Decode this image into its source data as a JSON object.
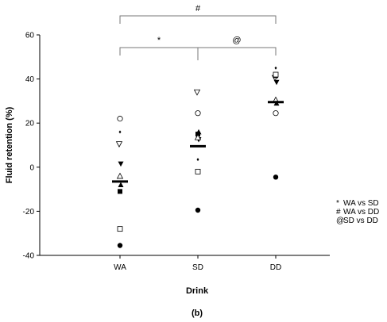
{
  "chart_data": {
    "type": "scatter",
    "xlabel": "Drink",
    "ylabel": "Fluid retention (%)",
    "panel_label": "(b)",
    "categories": [
      "WA",
      "SD",
      "DD"
    ],
    "ylim": [
      -40,
      60
    ],
    "yticks": [
      -40,
      -20,
      0,
      20,
      40,
      60
    ],
    "grid": false,
    "means": [
      -6.5,
      9.5,
      29.5
    ],
    "subjects": [
      {
        "marker": "filled-circle",
        "values": [
          -35.5,
          -19.5,
          -4.5
        ]
      },
      {
        "marker": "open-circle",
        "values": [
          22,
          24.5,
          24.5
        ]
      },
      {
        "marker": "filled-down-triangle",
        "values": [
          1.5,
          12.5,
          38.5
        ]
      },
      {
        "marker": "open-down-triangle",
        "values": [
          10.5,
          34,
          40.5
        ]
      },
      {
        "marker": "filled-square",
        "values": [
          -11,
          15,
          41.5
        ]
      },
      {
        "marker": "open-square",
        "values": [
          -28,
          -2,
          42
        ]
      },
      {
        "marker": "filled-diamond",
        "values": [
          16,
          3.5,
          45
        ]
      },
      {
        "marker": "open-up-triangle",
        "values": [
          -4,
          13.5,
          30.5
        ]
      },
      {
        "marker": "filled-up-triangle",
        "values": [
          -8,
          16,
          29
        ]
      }
    ],
    "significance": [
      {
        "symbol": "*",
        "from": "WA",
        "to": "SD",
        "level": 1
      },
      {
        "symbol": "@",
        "from": "SD",
        "to": "DD",
        "level": 1
      },
      {
        "symbol": "#",
        "from": "WA",
        "to": "DD",
        "level": 2
      }
    ],
    "legend": [
      {
        "symbol": "*",
        "text": "WA vs SD"
      },
      {
        "symbol": "#",
        "text": "WA vs DD"
      },
      {
        "symbol": "@",
        "text": "SD vs DD"
      }
    ]
  }
}
